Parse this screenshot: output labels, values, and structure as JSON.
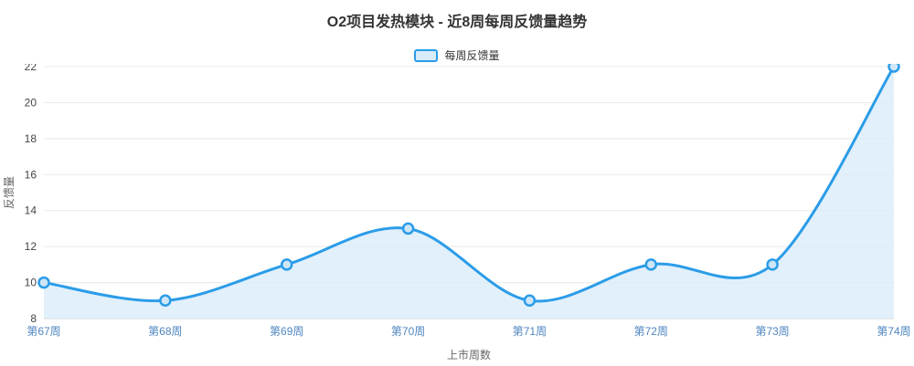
{
  "chart_data": {
    "type": "line",
    "title": "O2项目发热模块 - 近8周每周反馈量趋势",
    "categories": [
      "第67周",
      "第68周",
      "第69周",
      "第70周",
      "第71周",
      "第72周",
      "第73周",
      "第74周"
    ],
    "series": [
      {
        "name": "每周反馈量",
        "values": [
          10,
          9,
          11,
          13,
          9,
          11,
          11,
          22
        ]
      }
    ],
    "xlabel": "上市周数",
    "ylabel": "反馈量",
    "ylim": [
      8,
      22
    ],
    "ytick_step": 2,
    "yticks": [
      8,
      10,
      12,
      14,
      16,
      18,
      20,
      22
    ],
    "grid": true,
    "smooth": true,
    "area": true,
    "legend_position": "top",
    "colors": {
      "line": "#2b9ce8",
      "area": "#d9ecfa",
      "point_fill": "#cfe6f8",
      "grid": "#e8e8e8",
      "axis_line": "#cccccc",
      "title": "#333333",
      "x_tick": "#4f86c0",
      "y_tick": "#444444",
      "axis_name": "#666666",
      "legend_text": "#333333"
    }
  }
}
